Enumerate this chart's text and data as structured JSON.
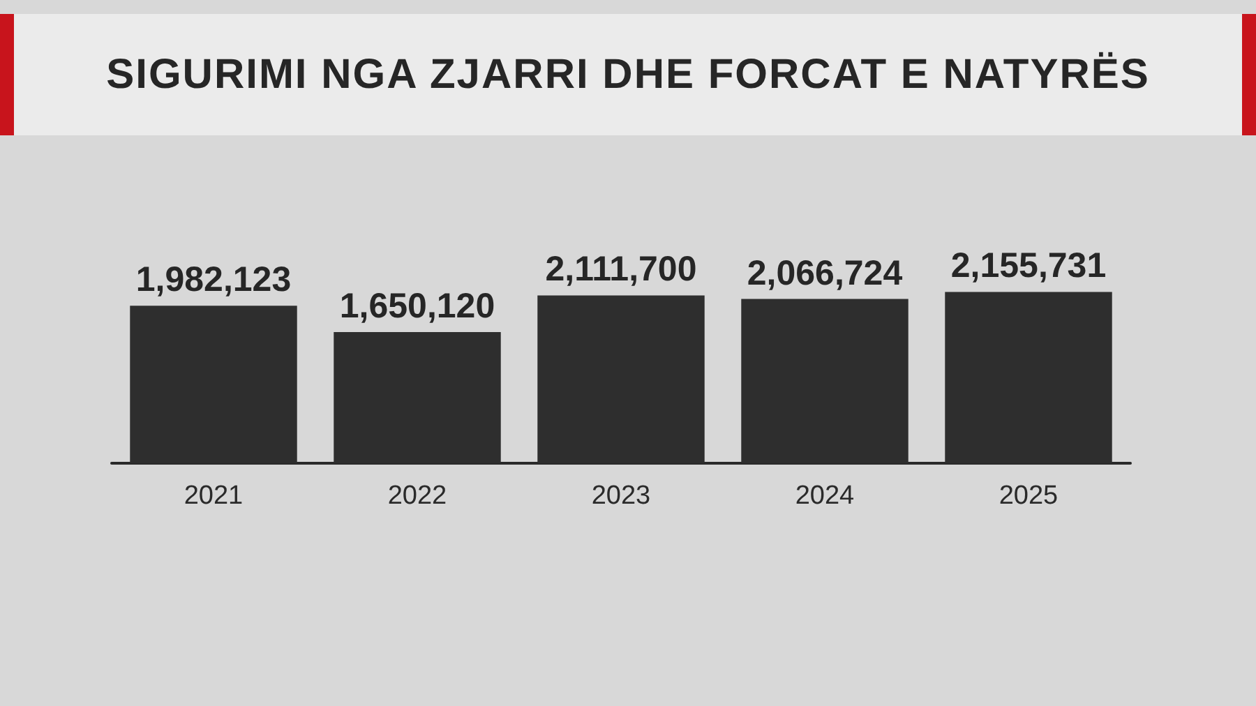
{
  "chart_data": {
    "type": "bar",
    "title": "SIGURIMI NGA ZJARRI DHE FORCAT E NATYRËS",
    "categories": [
      "2021",
      "2022",
      "2023",
      "2024",
      "2025"
    ],
    "values": [
      1982123,
      1650120,
      2111700,
      2066724,
      2155731
    ],
    "value_labels": [
      "1,982,123",
      "1,650,120",
      "2,111,700",
      "2,066,724",
      "2,155,731"
    ],
    "color": "#2e2e2e"
  }
}
